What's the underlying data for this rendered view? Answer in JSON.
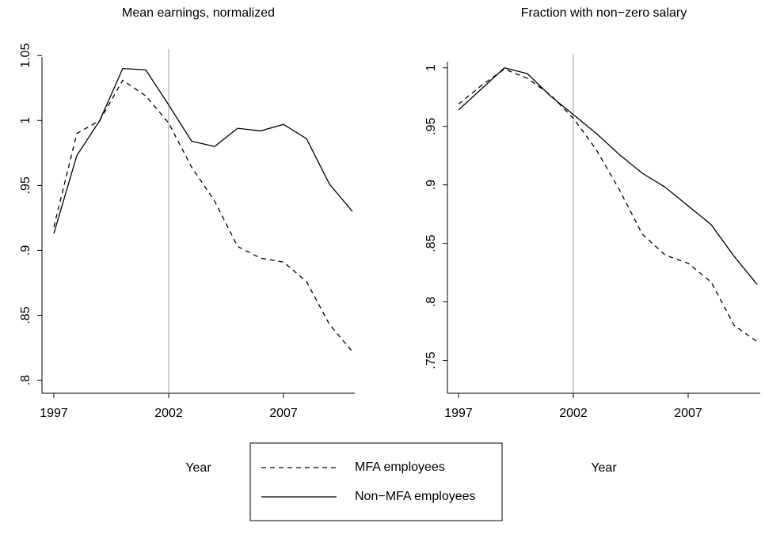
{
  "chart_data": [
    {
      "type": "line",
      "title": "Mean earnings, normalized",
      "x_label": "Year",
      "x": [
        1997,
        1998,
        1999,
        2000,
        2001,
        2002,
        2003,
        2004,
        2005,
        2006,
        2007,
        2008,
        2009,
        2010
      ],
      "series": [
        {
          "name": "MFA employees",
          "color": "#000000",
          "style": "dashed",
          "values": [
            0.918,
            0.99,
            1.0,
            1.031,
            1.019,
            0.998,
            0.964,
            0.938,
            0.903,
            0.894,
            0.891,
            0.876,
            0.843,
            0.822
          ]
        },
        {
          "name": "Non−MFA employees",
          "color": "#000000",
          "style": "solid",
          "values": [
            0.913,
            0.973,
            1.0,
            1.04,
            1.039,
            1.012,
            0.984,
            0.98,
            0.994,
            0.992,
            0.997,
            0.986,
            0.951,
            0.93
          ]
        }
      ],
      "xlim": [
        1997,
        2010
      ],
      "xticks": [
        1997,
        2002,
        2007
      ],
      "ylim": [
        0.79,
        1.055
      ],
      "yticks": [
        {
          "value": 0.8,
          "label": ".8"
        },
        {
          "value": 0.85,
          "label": ".85"
        },
        {
          "value": 0.9,
          "label": ".9"
        },
        {
          "value": 0.95,
          "label": ".95"
        },
        1,
        1.05
      ],
      "vline": 2002,
      "vline_color": "#a0a0a0"
    },
    {
      "type": "line",
      "title": "Fraction with non−zero salary",
      "x_label": "Year",
      "x": [
        1997,
        1998,
        1999,
        2000,
        2001,
        2002,
        2003,
        2004,
        2005,
        2006,
        2007,
        2008,
        2009,
        2010
      ],
      "series": [
        {
          "color": "#000000",
          "style": "dashed",
          "values": [
            0.969,
            0.985,
            0.999,
            0.991,
            0.977,
            0.957,
            0.93,
            0.896,
            0.858,
            0.84,
            0.833,
            0.817,
            0.78,
            0.766
          ]
        },
        {
          "color": "#000000",
          "style": "solid",
          "values": [
            0.964,
            0.982,
            1.0,
            0.995,
            0.976,
            0.96,
            0.944,
            0.926,
            0.91,
            0.898,
            0.882,
            0.866,
            0.839,
            0.815
          ]
        }
      ],
      "xlim": [
        1997,
        2010
      ],
      "xticks": [
        1997,
        2002,
        2007
      ],
      "ylim": [
        0.722,
        1.012
      ],
      "yticks": [
        {
          "value": 0.75,
          "label": ".75"
        },
        {
          "value": 0.8,
          "label": ".8"
        },
        {
          "value": 0.85,
          "label": ".85"
        },
        {
          "value": 0.9,
          "label": ".9"
        },
        {
          "value": 0.95,
          "label": ".95"
        },
        1
      ],
      "vline": 2002,
      "vline_color": "#a0a0a0"
    }
  ]
}
